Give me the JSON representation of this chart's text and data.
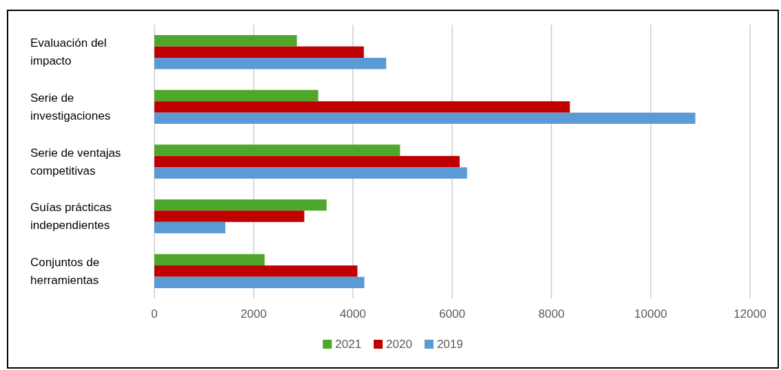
{
  "chart_data": {
    "type": "bar",
    "orientation": "horizontal",
    "categories": [
      "Evaluación del impacto",
      "Serie de investigaciones",
      "Serie de ventajas competitivas",
      "Guías prácticas independientes",
      "Conjuntos de herramientas"
    ],
    "series": [
      {
        "name": "2021",
        "color": "#4ea72a",
        "values": [
          2870,
          3300,
          4950,
          3470,
          2220
        ]
      },
      {
        "name": "2020",
        "color": "#c00000",
        "values": [
          4220,
          8370,
          6150,
          3020,
          4090
        ]
      },
      {
        "name": "2019",
        "color": "#5b9bd5",
        "values": [
          4670,
          10900,
          6300,
          1430,
          4230
        ]
      }
    ],
    "xlim": [
      0,
      12000
    ],
    "xticks": [
      0,
      2000,
      4000,
      6000,
      8000,
      10000,
      12000
    ],
    "grid": "x",
    "legend": "bottom"
  }
}
